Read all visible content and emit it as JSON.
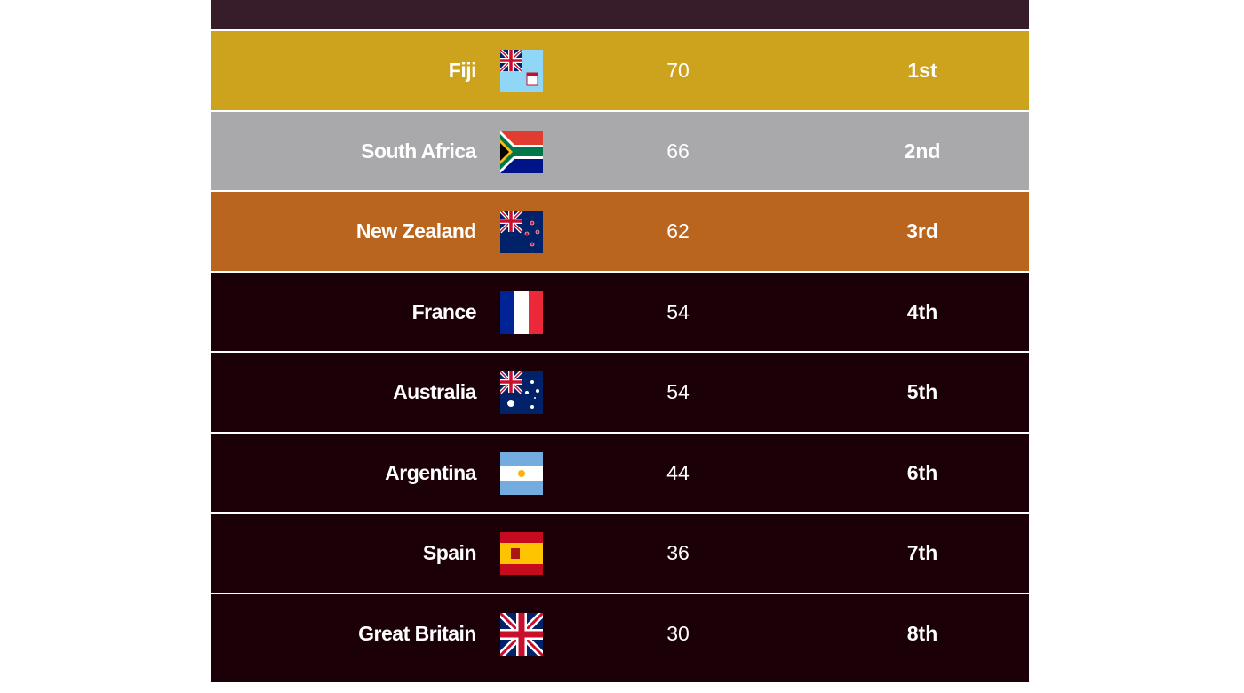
{
  "colors": {
    "gold": "#cda21c",
    "silver": "#a9a9ab",
    "bronze": "#b9651e",
    "default": "#1c0008",
    "header": "#371d2a"
  },
  "rows": [
    {
      "country": "Fiji",
      "flag": "fiji-flag",
      "points": "70",
      "position": "1st"
    },
    {
      "country": "South Africa",
      "flag": "south-africa-flag",
      "points": "66",
      "position": "2nd"
    },
    {
      "country": "New Zealand",
      "flag": "new-zealand-flag",
      "points": "62",
      "position": "3rd"
    },
    {
      "country": "France",
      "flag": "france-flag",
      "points": "54",
      "position": "4th"
    },
    {
      "country": "Australia",
      "flag": "australia-flag",
      "points": "54",
      "position": "5th"
    },
    {
      "country": "Argentina",
      "flag": "argentina-flag",
      "points": "44",
      "position": "6th"
    },
    {
      "country": "Spain",
      "flag": "spain-flag",
      "points": "36",
      "position": "7th"
    },
    {
      "country": "Great Britain",
      "flag": "great-britain-flag",
      "points": "30",
      "position": "8th"
    }
  ]
}
